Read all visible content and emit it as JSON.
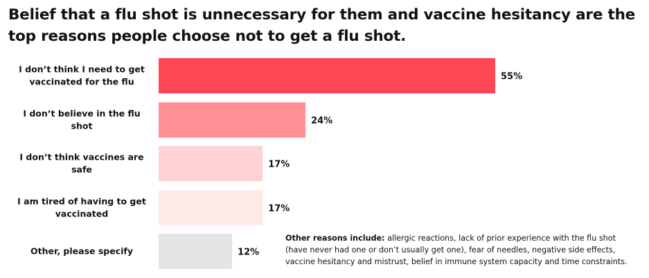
{
  "chart_data": {
    "type": "bar",
    "orientation": "horizontal",
    "title": "Belief that a flu shot is unnecessary for them and vaccine hesitancy are the top reasons people choose not to get a flu shot.",
    "categories": [
      "I don’t think I need to get vaccinated for the flu",
      "I don’t believe in the flu shot",
      "I don’t think vaccines are safe",
      "I am tired of having to get vaccinated",
      "Other, please specify"
    ],
    "values": [
      55,
      24,
      17,
      17,
      12
    ],
    "value_labels": [
      "55%",
      "24%",
      "17%",
      "17%",
      "12%"
    ],
    "value_unit": "%",
    "colors": [
      "#ff4654",
      "#ff9196",
      "#ffd2d4",
      "#ffeaea",
      "#e4e4e4"
    ],
    "xlim": [
      0,
      100
    ],
    "grid": false,
    "legend": "none",
    "annotation": {
      "lead": "Other reasons include:",
      "text": " allergic reactions, lack of prior experience with the flu shot (have never had one or don’t usually get one), fear of needles, negative side effects, vaccine hesitancy and mistrust, belief in immune system capacity and time constraints."
    }
  }
}
